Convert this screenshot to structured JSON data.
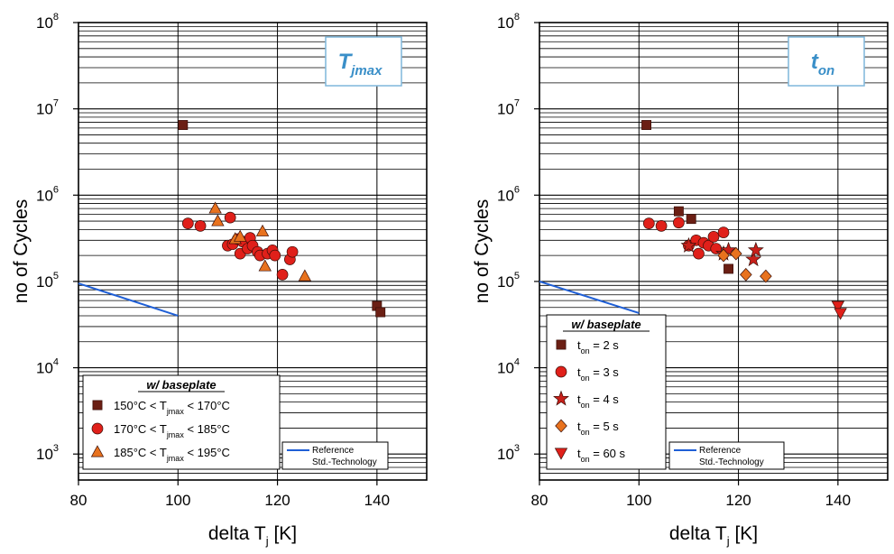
{
  "chart_data": [
    {
      "type": "scatter",
      "title_main": "T",
      "title_sub": "jmax",
      "xlabel_main": "delta T",
      "xlabel_sub": "j",
      "xlabel_unit": "[K]",
      "ylabel": "no of Cycles",
      "xlim": [
        80,
        150
      ],
      "ylim": [
        500,
        100000000
      ],
      "yscale": "log",
      "xticks": [
        "80",
        "100",
        "120",
        "140"
      ],
      "xtick_values": [
        80,
        100,
        120,
        140
      ],
      "yticks_base": [
        "10",
        "10",
        "10",
        "10",
        "10",
        "10"
      ],
      "yticks_exp": [
        "3",
        "4",
        "5",
        "6",
        "7",
        "8"
      ],
      "ytick_values": [
        1000,
        10000,
        100000,
        1000000,
        10000000,
        100000000
      ],
      "grid": true,
      "legend_title": "w/ baseplate",
      "legend_placement": "bottom-left",
      "legend_entries": [
        {
          "pre": "150°C < T",
          "sub": "jmax",
          "post": " < 170°C",
          "marker": "square",
          "color": "#6b1f14"
        },
        {
          "pre": "170°C < T",
          "sub": "jmax",
          "post": " < 185°C",
          "marker": "circle",
          "color": "#e0201a"
        },
        {
          "pre": "185°C < T",
          "sub": "jmax",
          "post": " < 195°C",
          "marker": "triangle-up",
          "color": "#e8721e"
        }
      ],
      "reference": {
        "label_1": "Reference",
        "label_2": "Std.-Technology",
        "color": "#1f5fd6",
        "x": [
          80,
          100
        ],
        "y": [
          95000,
          40000
        ]
      },
      "series": [
        {
          "marker": "square",
          "color": "#6b1f14",
          "points": [
            [
              101,
              6500000
            ],
            [
              140,
              52000
            ],
            [
              140.7,
              44000
            ]
          ]
        },
        {
          "marker": "circle",
          "color": "#e0201a",
          "points": [
            [
              102,
              470000
            ],
            [
              104.5,
              440000
            ],
            [
              110.5,
              550000
            ],
            [
              110,
              260000
            ],
            [
              111,
              270000
            ],
            [
              112,
              310000
            ],
            [
              112.5,
              210000
            ],
            [
              113,
              290000
            ],
            [
              114,
              240000
            ],
            [
              114.5,
              320000
            ],
            [
              115,
              260000
            ],
            [
              116,
              220000
            ],
            [
              116.5,
              200000
            ],
            [
              118,
              210000
            ],
            [
              119,
              230000
            ],
            [
              119.5,
              200000
            ],
            [
              121,
              120000
            ],
            [
              122.5,
              180000
            ],
            [
              123,
              220000
            ]
          ]
        },
        {
          "marker": "triangle-up",
          "color": "#e8721e",
          "points": [
            [
              107.5,
              700000
            ],
            [
              108,
              500000
            ],
            [
              111.5,
              310000
            ],
            [
              112.5,
              330000
            ],
            [
              117,
              380000
            ],
            [
              117.5,
              150000
            ],
            [
              125.5,
              115000
            ]
          ]
        }
      ]
    },
    {
      "type": "scatter",
      "title_main": "t",
      "title_sub": "on",
      "xlabel_main": "delta T",
      "xlabel_sub": "j",
      "xlabel_unit": "[K]",
      "ylabel": "no of Cycles",
      "xlim": [
        80,
        150
      ],
      "ylim": [
        500,
        100000000
      ],
      "yscale": "log",
      "xticks": [
        "80",
        "100",
        "120",
        "140"
      ],
      "xtick_values": [
        80,
        100,
        120,
        140
      ],
      "yticks_base": [
        "10",
        "10",
        "10",
        "10",
        "10",
        "10"
      ],
      "yticks_exp": [
        "3",
        "4",
        "5",
        "6",
        "7",
        "8"
      ],
      "ytick_values": [
        1000,
        10000,
        100000,
        1000000,
        10000000,
        100000000
      ],
      "grid": true,
      "legend_title": "w/ baseplate",
      "legend_placement": "bottom-left",
      "legend_entries": [
        {
          "pre": "t",
          "sub": "on",
          "post": " = 2 s",
          "marker": "square",
          "color": "#6b1f14"
        },
        {
          "pre": "t",
          "sub": "on",
          "post": " = 3 s",
          "marker": "circle",
          "color": "#e0201a"
        },
        {
          "pre": "t",
          "sub": "on",
          "post": " = 4 s",
          "marker": "star",
          "color": "#c8201a"
        },
        {
          "pre": "t",
          "sub": "on",
          "post": " = 5 s",
          "marker": "diamond",
          "color": "#e8721e"
        },
        {
          "pre": "t",
          "sub": "on",
          "post": " = 60 s",
          "marker": "triangle-down",
          "color": "#e0201a"
        }
      ],
      "reference": {
        "label_1": "Reference",
        "label_2": "Std.-Technology",
        "color": "#1f5fd6",
        "x": [
          80,
          100
        ],
        "y": [
          100000,
          43000
        ]
      },
      "series": [
        {
          "marker": "square",
          "color": "#6b1f14",
          "points": [
            [
              101.5,
              6500000
            ],
            [
              108,
              650000
            ],
            [
              110.5,
              530000
            ],
            [
              118,
              140000
            ]
          ]
        },
        {
          "marker": "circle",
          "color": "#e0201a",
          "points": [
            [
              102,
              470000
            ],
            [
              104.5,
              440000
            ],
            [
              108,
              480000
            ],
            [
              110,
              260000
            ],
            [
              111.5,
              300000
            ],
            [
              112,
              210000
            ],
            [
              113,
              280000
            ],
            [
              114,
              260000
            ],
            [
              115,
              330000
            ],
            [
              115.5,
              240000
            ],
            [
              117,
              370000
            ]
          ]
        },
        {
          "marker": "star",
          "color": "#c8201a",
          "points": [
            [
              110,
              260000
            ],
            [
              117,
              210000
            ],
            [
              118,
              230000
            ],
            [
              123,
              180000
            ],
            [
              123.5,
              230000
            ]
          ]
        },
        {
          "marker": "diamond",
          "color": "#e8721e",
          "points": [
            [
              117,
              200000
            ],
            [
              119.5,
              210000
            ],
            [
              121.5,
              120000
            ],
            [
              125.5,
              115000
            ]
          ]
        },
        {
          "marker": "triangle-down",
          "color": "#e0201a",
          "points": [
            [
              140,
              52000
            ],
            [
              140.5,
              43000
            ]
          ]
        }
      ]
    }
  ]
}
